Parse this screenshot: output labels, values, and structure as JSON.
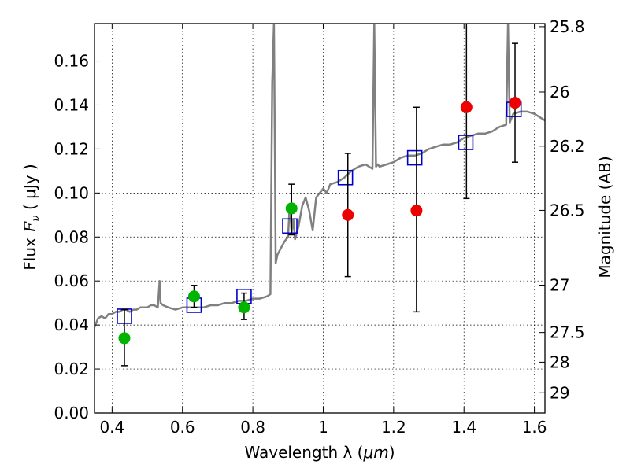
{
  "chart_data": {
    "type": "scatter",
    "xlabel_text": "Wavelength  λ (",
    "xlabel_unit": "μm",
    "xlabel_close": ")",
    "ylabel_text": "Flux  ",
    "ylabel_var": "F",
    "ylabel_sub": "ν",
    "ylabel_unit": " ( μJy )",
    "y2label": "Magnitude (AB)",
    "xlim": [
      0.35,
      1.63
    ],
    "ylim": [
      0.0,
      0.177
    ],
    "grid": true,
    "x_ticks": [
      {
        "value": 0.4,
        "label": "0.4"
      },
      {
        "value": 0.6,
        "label": "0.6"
      },
      {
        "value": 0.8,
        "label": "0.8"
      },
      {
        "value": 1.0,
        "label": "1"
      },
      {
        "value": 1.2,
        "label": "1.2"
      },
      {
        "value": 1.4,
        "label": "1.4"
      },
      {
        "value": 1.6,
        "label": "1.6"
      }
    ],
    "y_ticks": [
      {
        "value": 0.0,
        "label": "0.00"
      },
      {
        "value": 0.02,
        "label": "0.02"
      },
      {
        "value": 0.04,
        "label": "0.04"
      },
      {
        "value": 0.06,
        "label": "0.06"
      },
      {
        "value": 0.08,
        "label": "0.08"
      },
      {
        "value": 0.1,
        "label": "0.10"
      },
      {
        "value": 0.12,
        "label": "0.12"
      },
      {
        "value": 0.14,
        "label": "0.14"
      },
      {
        "value": 0.16,
        "label": "0.16"
      }
    ],
    "y2_ticks": [
      {
        "label": "25.8",
        "flux": 0.1756
      },
      {
        "label": "26",
        "flux": 0.1459
      },
      {
        "label": "26.2",
        "flux": 0.1213
      },
      {
        "label": "26.5",
        "flux": 0.0921
      },
      {
        "label": "27",
        "flux": 0.0581
      },
      {
        "label": "27.5",
        "flux": 0.0366
      },
      {
        "label": "28",
        "flux": 0.0231
      },
      {
        "label": "29",
        "flux": 0.0092
      }
    ],
    "series": [
      {
        "kind": "line",
        "color": "#808080",
        "x": [
          0.35,
          0.36,
          0.37,
          0.38,
          0.39,
          0.4,
          0.41,
          0.42,
          0.43,
          0.44,
          0.45,
          0.46,
          0.47,
          0.48,
          0.49,
          0.5,
          0.51,
          0.52,
          0.53,
          0.535,
          0.538,
          0.545,
          0.56,
          0.58,
          0.6,
          0.62,
          0.64,
          0.66,
          0.68,
          0.7,
          0.72,
          0.74,
          0.76,
          0.78,
          0.8,
          0.82,
          0.84,
          0.85,
          0.855,
          0.86,
          0.865,
          0.87,
          0.88,
          0.89,
          0.9,
          0.905,
          0.91,
          0.915,
          0.92,
          0.93,
          0.94,
          0.95,
          0.96,
          0.97,
          0.98,
          0.99,
          1.0,
          1.01,
          1.02,
          1.04,
          1.06,
          1.08,
          1.1,
          1.12,
          1.14,
          1.145,
          1.15,
          1.155,
          1.16,
          1.18,
          1.2,
          1.22,
          1.24,
          1.26,
          1.28,
          1.3,
          1.32,
          1.34,
          1.36,
          1.38,
          1.4,
          1.42,
          1.44,
          1.46,
          1.48,
          1.5,
          1.52,
          1.525,
          1.53,
          1.535,
          1.54,
          1.56,
          1.58,
          1.6,
          1.62,
          1.63
        ],
        "y": [
          0.039,
          0.043,
          0.044,
          0.043,
          0.045,
          0.045,
          0.046,
          0.046,
          0.047,
          0.047,
          0.046,
          0.047,
          0.047,
          0.048,
          0.048,
          0.048,
          0.049,
          0.049,
          0.048,
          0.06,
          0.05,
          0.049,
          0.048,
          0.047,
          0.048,
          0.048,
          0.048,
          0.048,
          0.049,
          0.049,
          0.05,
          0.05,
          0.051,
          0.051,
          0.052,
          0.052,
          0.053,
          0.054,
          0.15,
          0.177,
          0.068,
          0.072,
          0.075,
          0.078,
          0.08,
          0.095,
          0.082,
          0.088,
          0.079,
          0.085,
          0.094,
          0.098,
          0.092,
          0.083,
          0.098,
          0.1,
          0.102,
          0.1,
          0.104,
          0.105,
          0.107,
          0.11,
          0.112,
          0.113,
          0.111,
          0.177,
          0.112,
          0.113,
          0.112,
          0.113,
          0.114,
          0.116,
          0.117,
          0.117,
          0.118,
          0.12,
          0.121,
          0.122,
          0.122,
          0.123,
          0.125,
          0.126,
          0.127,
          0.127,
          0.128,
          0.13,
          0.131,
          0.177,
          0.132,
          0.134,
          0.136,
          0.137,
          0.137,
          0.136,
          0.134,
          0.133
        ]
      },
      {
        "kind": "marker",
        "marker": "square",
        "color": "#0000cc",
        "points": [
          {
            "x": 0.435,
            "y": 0.044
          },
          {
            "x": 0.633,
            "y": 0.049
          },
          {
            "x": 0.775,
            "y": 0.053
          },
          {
            "x": 0.905,
            "y": 0.085
          },
          {
            "x": 1.063,
            "y": 0.107
          },
          {
            "x": 1.26,
            "y": 0.116
          },
          {
            "x": 1.405,
            "y": 0.123
          },
          {
            "x": 1.542,
            "y": 0.138
          }
        ]
      },
      {
        "kind": "marker",
        "marker": "circle",
        "color": "#00b400",
        "points": [
          {
            "x": 0.435,
            "y": 0.034,
            "err_lo": 0.0215,
            "err_hi": 0.047
          },
          {
            "x": 0.633,
            "y": 0.053,
            "err_lo": 0.048,
            "err_hi": 0.058
          },
          {
            "x": 0.775,
            "y": 0.048,
            "err_lo": 0.0425,
            "err_hi": 0.0545
          },
          {
            "x": 0.91,
            "y": 0.093,
            "err_lo": 0.081,
            "err_hi": 0.104
          }
        ]
      },
      {
        "kind": "marker",
        "marker": "circle",
        "color": "#ee0000",
        "points": [
          {
            "x": 1.07,
            "y": 0.09,
            "err_lo": 0.062,
            "err_hi": 0.118
          },
          {
            "x": 1.265,
            "y": 0.092,
            "err_lo": 0.046,
            "err_hi": 0.139
          },
          {
            "x": 1.407,
            "y": 0.139,
            "err_lo": 0.0975,
            "err_hi": 0.177
          },
          {
            "x": 1.545,
            "y": 0.141,
            "err_lo": 0.114,
            "err_hi": 0.168
          }
        ]
      }
    ]
  }
}
